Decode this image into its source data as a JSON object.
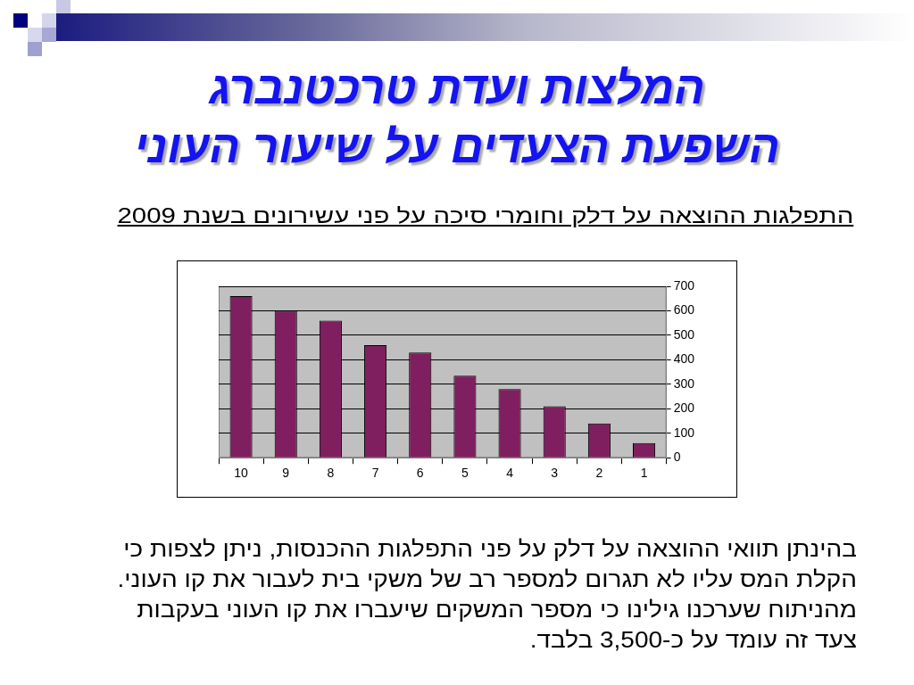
{
  "chart_data": {
    "type": "bar",
    "title": "המלצות ועדת טרכטנברג\nהשפעת הצעדים על שיעור העוני",
    "subtitle": "התפלגות ההוצאה על דלק וחומרי סיכה על פני עשירונים בשנת 2009",
    "categories": [
      "10",
      "9",
      "8",
      "7",
      "6",
      "5",
      "4",
      "3",
      "2",
      "1"
    ],
    "values": [
      660,
      600,
      560,
      460,
      430,
      335,
      280,
      210,
      140,
      60
    ],
    "color": "#7f1f5f",
    "ylim": [
      0,
      700
    ],
    "yticks": [
      0,
      100,
      200,
      300,
      400,
      500,
      600,
      700
    ],
    "grid": "y",
    "annotations": [
      "בהינתן תוואי ההוצאה על דלק על פני התפלגות ההכנסות, ניתן לצפות כי הקלת המס עליו לא תגרום למספר רב של משקי בית לעבור את קו העוני.",
      "מהניתוח שערכנו גילינו כי מספר המשקים שיעברו את קו העוני בעקבות צעד זה עומד על כ-3,500 בלבד."
    ]
  }
}
